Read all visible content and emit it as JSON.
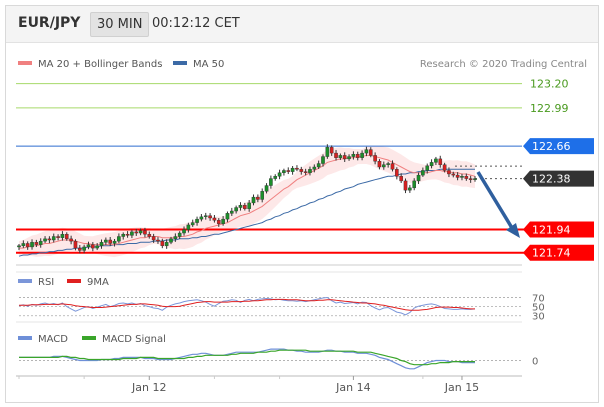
{
  "header": {
    "symbol": "EUR/JPY",
    "timeframe": "30 MIN",
    "timestamp": "00:12:12 CET"
  },
  "legend": {
    "ma20_label": "MA 20 + Bollinger Bands",
    "ma50_label": "MA 50",
    "copyright": "Research © 2020 Trading Central",
    "rsi_label": "RSI",
    "rsi_ma_label": "9MA",
    "macd_label": "MACD",
    "macd_signal_label": "MACD Signal"
  },
  "colors": {
    "up_candle": "#1b8f2a",
    "down_candle": "#d62020",
    "ma20": "#f08080",
    "ma50": "#3c6aa6",
    "bollinger_fill": "#fde2e2",
    "target_line": "#a6d96a",
    "pivot_line": "#2d6ccf",
    "support_line": "#ff0000",
    "price_tag": "#333333",
    "pivot_tag": "#1e6fe8",
    "rsi": "#7b96d9",
    "rsi_ma": "#e02020",
    "macd": "#6e8fd8",
    "macd_signal": "#3aa52a"
  },
  "chart_data": [
    {
      "type": "candlestick",
      "title": "EUR/JPY 30 MIN",
      "x_ticks": [
        "Jan 12",
        "Jan 14",
        "Jan 15"
      ],
      "ylim": [
        121.66,
        123.3
      ],
      "levels": [
        {
          "name": "resistance_2",
          "value": 123.2,
          "label": "123.20",
          "kind": "target"
        },
        {
          "name": "resistance_1",
          "value": 122.99,
          "label": "122.99",
          "kind": "target"
        },
        {
          "name": "pivot",
          "value": 122.66,
          "label": "122.66",
          "kind": "pivot"
        },
        {
          "name": "last_price",
          "value": 122.38,
          "label": "122.38",
          "kind": "price"
        },
        {
          "name": "support_1",
          "value": 121.94,
          "label": "121.94",
          "kind": "support"
        },
        {
          "name": "support_2",
          "value": 121.74,
          "label": "121.74",
          "kind": "support"
        }
      ],
      "close": [
        121.8,
        121.82,
        121.79,
        121.83,
        121.81,
        121.84,
        121.86,
        121.85,
        121.88,
        121.87,
        121.9,
        121.86,
        121.84,
        121.78,
        121.76,
        121.79,
        121.81,
        121.78,
        121.8,
        121.83,
        121.85,
        121.82,
        121.84,
        121.88,
        121.9,
        121.89,
        121.92,
        121.91,
        121.93,
        121.9,
        121.88,
        121.85,
        121.84,
        121.8,
        121.83,
        121.86,
        121.88,
        121.91,
        121.94,
        121.98,
        122.0,
        122.03,
        122.05,
        122.06,
        122.04,
        122.02,
        121.99,
        122.03,
        122.08,
        122.1,
        122.13,
        122.15,
        122.12,
        122.17,
        122.22,
        122.2,
        122.27,
        122.32,
        122.38,
        122.4,
        122.43,
        122.45,
        122.44,
        122.47,
        122.46,
        122.44,
        122.43,
        122.46,
        122.48,
        122.51,
        122.57,
        122.65,
        122.6,
        122.56,
        122.58,
        122.55,
        122.57,
        122.59,
        122.56,
        122.6,
        122.63,
        122.58,
        122.53,
        122.48,
        122.5,
        122.51,
        122.46,
        122.4,
        122.36,
        122.28,
        122.3,
        122.36,
        122.41,
        122.45,
        122.49,
        122.52,
        122.55,
        122.5,
        122.45,
        122.42,
        122.41,
        122.39,
        122.4,
        122.38,
        122.37,
        122.38
      ],
      "ma20": [
        121.78,
        121.78,
        121.79,
        121.8,
        121.8,
        121.81,
        121.82,
        121.82,
        121.83,
        121.84,
        121.85,
        121.85,
        121.85,
        121.84,
        121.83,
        121.82,
        121.82,
        121.81,
        121.81,
        121.81,
        121.81,
        121.81,
        121.81,
        121.82,
        121.83,
        121.84,
        121.85,
        121.86,
        121.87,
        121.87,
        121.88,
        121.88,
        121.88,
        121.87,
        121.87,
        121.87,
        121.87,
        121.88,
        121.88,
        121.89,
        121.9,
        121.92,
        121.93,
        121.95,
        121.96,
        121.97,
        121.98,
        121.99,
        122.0,
        122.02,
        122.04,
        122.06,
        122.07,
        122.08,
        122.1,
        122.12,
        122.14,
        122.17,
        122.2,
        122.23,
        122.26,
        122.29,
        122.31,
        122.34,
        122.37,
        122.39,
        122.41,
        122.43,
        122.45,
        122.47,
        122.49,
        122.52,
        122.53,
        122.54,
        122.55,
        122.55,
        122.56,
        122.56,
        122.57,
        122.57,
        122.58,
        122.58,
        122.57,
        122.56,
        122.55,
        122.54,
        122.52,
        122.5,
        122.48,
        122.46,
        122.44,
        122.43,
        122.43,
        122.43,
        122.43,
        122.44,
        122.45,
        122.45,
        122.44,
        122.44,
        122.43,
        122.43,
        122.42,
        122.42,
        122.41,
        122.4
      ],
      "ma50": [
        121.71,
        121.72,
        121.72,
        121.73,
        121.73,
        121.74,
        121.74,
        121.75,
        121.75,
        121.76,
        121.76,
        121.77,
        121.77,
        121.78,
        121.78,
        121.78,
        121.79,
        121.79,
        121.79,
        121.8,
        121.8,
        121.8,
        121.81,
        121.81,
        121.81,
        121.82,
        121.82,
        121.82,
        121.83,
        121.83,
        121.83,
        121.84,
        121.84,
        121.84,
        121.85,
        121.85,
        121.85,
        121.86,
        121.86,
        121.86,
        121.87,
        121.87,
        121.88,
        121.88,
        121.89,
        121.9,
        121.9,
        121.91,
        121.92,
        121.93,
        121.94,
        121.95,
        121.96,
        121.97,
        121.98,
        121.99,
        122.0,
        122.02,
        122.03,
        122.05,
        122.06,
        122.08,
        122.09,
        122.11,
        122.12,
        122.14,
        122.15,
        122.17,
        122.18,
        122.2,
        122.21,
        122.23,
        122.24,
        122.26,
        122.27,
        122.29,
        122.3,
        122.31,
        122.33,
        122.34,
        122.35,
        122.36,
        122.37,
        122.38,
        122.39,
        122.4,
        122.4,
        122.41,
        122.42,
        122.42,
        122.43,
        122.43,
        122.44,
        122.44,
        122.45,
        122.45,
        122.45,
        122.46,
        122.46,
        122.46,
        122.46,
        122.46,
        122.46,
        122.46,
        122.46,
        122.46
      ]
    },
    {
      "type": "line",
      "name": "RSI",
      "yticks": [
        70,
        50,
        30
      ],
      "ylim": [
        25,
        80
      ],
      "series": [
        {
          "name": "RSI",
          "values": [
            52,
            54,
            51,
            55,
            53,
            56,
            58,
            55,
            57,
            54,
            58,
            50,
            45,
            40,
            44,
            48,
            50,
            46,
            49,
            52,
            55,
            50,
            53,
            57,
            58,
            56,
            58,
            55,
            57,
            52,
            50,
            47,
            46,
            42,
            49,
            53,
            56,
            58,
            61,
            63,
            64,
            65,
            63,
            60,
            55,
            51,
            57,
            62,
            63,
            65,
            64,
            59,
            64,
            66,
            63,
            66,
            67,
            68,
            67,
            65,
            66,
            64,
            63,
            63,
            62,
            63,
            61,
            63,
            65,
            67,
            69,
            70,
            63,
            58,
            60,
            57,
            58,
            59,
            56,
            60,
            59,
            52,
            47,
            43,
            47,
            48,
            43,
            38,
            36,
            32,
            37,
            47,
            51,
            53,
            55,
            56,
            54,
            50,
            46,
            45,
            44,
            44,
            45,
            44,
            44,
            45
          ]
        },
        {
          "name": "9MA",
          "values": [
            53,
            53,
            53,
            54,
            54,
            54,
            55,
            55,
            55,
            55,
            56,
            55,
            54,
            52,
            51,
            50,
            49,
            48,
            48,
            48,
            49,
            50,
            51,
            52,
            53,
            54,
            55,
            55,
            56,
            56,
            55,
            54,
            53,
            51,
            50,
            50,
            50,
            51,
            53,
            55,
            57,
            59,
            60,
            61,
            61,
            60,
            60,
            60,
            60,
            61,
            61,
            61,
            62,
            62,
            63,
            63,
            64,
            65,
            65,
            66,
            66,
            66,
            65,
            65,
            65,
            64,
            63,
            63,
            63,
            64,
            64,
            65,
            65,
            64,
            63,
            62,
            61,
            60,
            59,
            58,
            58,
            57,
            56,
            54,
            53,
            51,
            49,
            47,
            45,
            43,
            42,
            42,
            42,
            43,
            44,
            46,
            48,
            49,
            49,
            49,
            48,
            48,
            47,
            46,
            45,
            45
          ]
        }
      ]
    },
    {
      "type": "line",
      "name": "MACD",
      "yticks": [
        0
      ],
      "ylim": [
        -0.12,
        0.14
      ],
      "series": [
        {
          "name": "MACD",
          "values": [
            0.03,
            0.03,
            0.03,
            0.03,
            0.03,
            0.03,
            0.03,
            0.03,
            0.04,
            0.04,
            0.04,
            0.03,
            0.02,
            0.01,
            0.0,
            0.0,
            0.0,
            0.0,
            0.0,
            0.01,
            0.01,
            0.01,
            0.02,
            0.02,
            0.03,
            0.03,
            0.03,
            0.03,
            0.03,
            0.02,
            0.02,
            0.02,
            0.01,
            0.01,
            0.01,
            0.01,
            0.02,
            0.03,
            0.04,
            0.05,
            0.06,
            0.06,
            0.07,
            0.07,
            0.06,
            0.05,
            0.05,
            0.05,
            0.06,
            0.07,
            0.08,
            0.08,
            0.08,
            0.08,
            0.08,
            0.08,
            0.09,
            0.1,
            0.11,
            0.11,
            0.11,
            0.11,
            0.1,
            0.1,
            0.09,
            0.09,
            0.08,
            0.08,
            0.08,
            0.08,
            0.09,
            0.1,
            0.1,
            0.09,
            0.09,
            0.08,
            0.08,
            0.08,
            0.07,
            0.07,
            0.07,
            0.06,
            0.05,
            0.03,
            0.02,
            0.01,
            -0.01,
            -0.03,
            -0.05,
            -0.07,
            -0.08,
            -0.08,
            -0.06,
            -0.04,
            -0.02,
            -0.01,
            0.0,
            0.0,
            0.0,
            -0.01,
            -0.01,
            -0.01,
            -0.02,
            -0.02,
            -0.02,
            -0.02
          ]
        },
        {
          "name": "MACD Signal",
          "values": [
            0.03,
            0.03,
            0.03,
            0.03,
            0.03,
            0.03,
            0.03,
            0.03,
            0.03,
            0.03,
            0.04,
            0.04,
            0.03,
            0.03,
            0.02,
            0.02,
            0.01,
            0.01,
            0.01,
            0.01,
            0.01,
            0.01,
            0.01,
            0.01,
            0.02,
            0.02,
            0.02,
            0.02,
            0.03,
            0.03,
            0.03,
            0.03,
            0.02,
            0.02,
            0.02,
            0.02,
            0.02,
            0.02,
            0.02,
            0.03,
            0.03,
            0.04,
            0.04,
            0.05,
            0.05,
            0.05,
            0.05,
            0.05,
            0.05,
            0.06,
            0.06,
            0.07,
            0.07,
            0.07,
            0.07,
            0.08,
            0.08,
            0.08,
            0.09,
            0.09,
            0.1,
            0.1,
            0.1,
            0.1,
            0.1,
            0.1,
            0.1,
            0.09,
            0.09,
            0.09,
            0.09,
            0.09,
            0.09,
            0.09,
            0.09,
            0.09,
            0.09,
            0.09,
            0.08,
            0.08,
            0.08,
            0.08,
            0.07,
            0.06,
            0.05,
            0.04,
            0.03,
            0.02,
            0.0,
            -0.01,
            -0.03,
            -0.04,
            -0.04,
            -0.04,
            -0.04,
            -0.03,
            -0.03,
            -0.02,
            -0.02,
            -0.02,
            -0.01,
            -0.01,
            -0.01,
            -0.01,
            -0.01,
            -0.01
          ]
        }
      ]
    }
  ]
}
